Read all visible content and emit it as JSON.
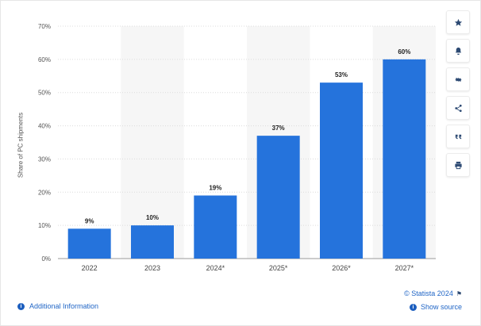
{
  "chart_data": {
    "type": "bar",
    "categories": [
      "2022",
      "2023",
      "2024*",
      "2025*",
      "2026*",
      "2027*"
    ],
    "values": [
      9,
      10,
      19,
      37,
      53,
      60
    ],
    "data_labels": [
      "9%",
      "10%",
      "19%",
      "37%",
      "53%",
      "60%"
    ],
    "ylabel": "Share of PC shipments",
    "ylim": [
      0,
      70
    ],
    "yticks": [
      "0%",
      "10%",
      "20%",
      "30%",
      "40%",
      "50%",
      "60%",
      "70%"
    ],
    "grid": true,
    "alternating_column_shading": true,
    "bar_color": "#2573dc"
  },
  "toolbar": {
    "buttons": [
      {
        "name": "favorite-button",
        "icon": "star-icon"
      },
      {
        "name": "notification-button",
        "icon": "bell-icon"
      },
      {
        "name": "settings-button",
        "icon": "gear-icon"
      },
      {
        "name": "share-button",
        "icon": "share-icon"
      },
      {
        "name": "cite-button",
        "icon": "quote-icon"
      },
      {
        "name": "print-button",
        "icon": "printer-icon"
      }
    ]
  },
  "footer": {
    "additional_info": "Additional Information",
    "credit": "© Statista 2024",
    "show_source": "Show source"
  },
  "colors": {
    "accent": "#2166c6",
    "icon": "#2d4a73"
  }
}
